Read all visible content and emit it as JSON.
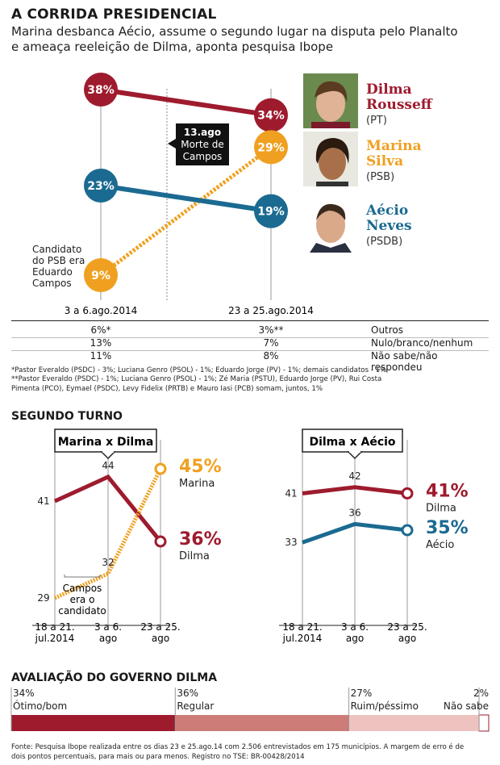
{
  "header": {
    "title": "A CORRIDA PRESIDENCIAL",
    "subtitle_line1": "Marina desbanca Aécio, assume o segundo lugar na disputa pelo Planalto",
    "subtitle_line2": "e ameaça reeleição de Dilma, aponta pesquisa Ibope"
  },
  "colors": {
    "dilma": "#9e1b2e",
    "marina": "#f0a020",
    "aecio": "#1b6a91"
  },
  "chart_data": [
    {
      "type": "line",
      "categories": [
        "3 a 6.ago.2014",
        "23 a 25.ago.2014"
      ],
      "series": [
        {
          "name": "Dilma Rousseff",
          "party": "(PT)",
          "values": [
            38,
            34
          ],
          "labels": [
            "38%",
            "34%"
          ]
        },
        {
          "name": "Marina Silva",
          "party": "(PSB)",
          "values": [
            9,
            29
          ],
          "labels": [
            "9%",
            "29%"
          ]
        },
        {
          "name": "Aécio Neves",
          "party": "(PSDB)",
          "values": [
            23,
            19
          ],
          "labels": [
            "23%",
            "19%"
          ]
        }
      ],
      "annotations": {
        "event": [
          "13.ago",
          "Morte de",
          "Campos"
        ],
        "psb_note": [
          "Candidato",
          "do PSB era",
          "Eduardo",
          "Campos"
        ]
      },
      "table": [
        {
          "v1": "6%*",
          "v2": "3%**",
          "label": "Outros"
        },
        {
          "v1": "13%",
          "v2": "7%",
          "label": "Nulo/branco/nenhum"
        },
        {
          "v1": "11%",
          "v2": "8%",
          "label": "Não sabe/não respondeu"
        }
      ],
      "notes": [
        "*Pastor Everaldo (PSDC) - 3%; Luciana Genro (PSOL) - 1%; Eduardo Jorge (PV) - 1%; demais candidatos - 1%",
        "**Pastor Everaldo (PSDC) - 1%; Luciana Genro (PSOL) - 1%; Zé Maria (PSTU), Eduardo Jorge (PV), Rui Costa",
        "Pimenta (PCO), Eymael (PSDC), Levy Fidelix (PRTB) e Mauro Iasi (PCB) somam, juntos, 1%"
      ]
    },
    {
      "type": "line",
      "title": "Marina x Dilma",
      "categories": [
        [
          "18 a 21.",
          "jul.2014"
        ],
        [
          "3 a 6.",
          "ago"
        ],
        [
          "23 a 25.",
          "ago"
        ]
      ],
      "series": [
        {
          "name": "Dilma",
          "values": [
            41,
            44,
            36
          ],
          "end_label": "36%"
        },
        {
          "name": "Marina",
          "values": [
            29,
            32,
            45
          ],
          "end_label": "45%"
        }
      ],
      "annotation": [
        "Campos",
        "era o",
        "candidato"
      ]
    },
    {
      "type": "line",
      "title": "Dilma x Aécio",
      "categories": [
        [
          "18 a 21.",
          "jul.2014"
        ],
        [
          "3 a 6.",
          "ago"
        ],
        [
          "23 a 25.",
          "ago"
        ]
      ],
      "series": [
        {
          "name": "Dilma",
          "values": [
            41,
            42,
            41
          ],
          "end_label": "41%"
        },
        {
          "name": "Aécio",
          "values": [
            33,
            36,
            35
          ],
          "end_label": "35%"
        }
      ]
    },
    {
      "type": "bar",
      "title": "AVALIAÇÃO DO GOVERNO DILMA",
      "categories": [
        "Ótimo/bom",
        "Regular",
        "Ruim/péssimo",
        "Não sabe"
      ],
      "values": [
        34,
        36,
        27,
        2
      ],
      "labels": [
        "34%",
        "36%",
        "27%",
        "2%"
      ],
      "colors": [
        "#9e1b2e",
        "#cd7c78",
        "#eec3bf",
        "#ffffff"
      ]
    }
  ],
  "sections": {
    "segundo_turno": "SEGUNDO TURNO"
  },
  "footer": {
    "line1": "Fonte: Pesquisa Ibope realizada entre os dias 23 e 25.ago.14 com 2.506 entrevistados em 175 municípios. A margem de erro é de",
    "line2": "dois pontos percentuais, para mais ou para menos. Registro no TSE: BR-00428/2014"
  },
  "photos": [
    "dilma-photo",
    "marina-photo",
    "aecio-photo"
  ]
}
